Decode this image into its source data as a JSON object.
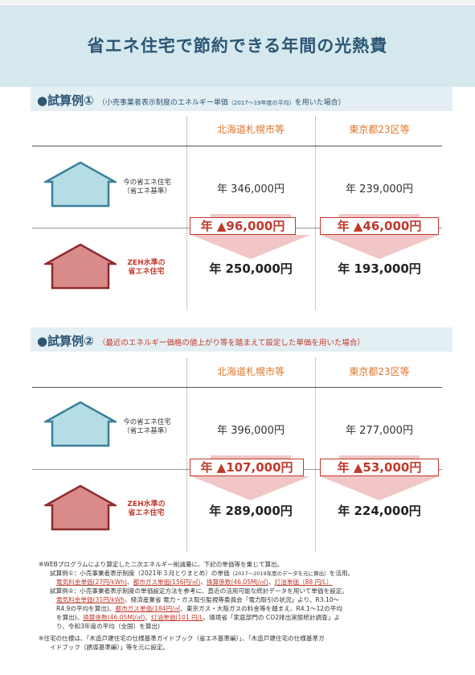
{
  "title": "省エネ住宅で節約できる年間の光熱費",
  "cases": [
    {
      "label": "●試算例①",
      "note_pre": "（小売事業者表示制度のエネルギー単価",
      "note_small": "（2017～19年度の平均）",
      "note_post": "を用いた場合）",
      "note_red": "",
      "col_sapporo": "北海道札幌市等",
      "col_tokyo": "東京都23区等",
      "house1_label_line1": "今の省エネ住宅",
      "house1_label_line2": "（省エネ基準）",
      "house2_label_line1": "ZEH水準の",
      "house2_label_line2": "省エネ住宅",
      "sapporo_current": "年 346,000円",
      "tokyo_current": "年 239,000円",
      "sapporo_saving": "年 ▲96,000円",
      "tokyo_saving": "年 ▲46,000円",
      "sapporo_zeh": "年 250,000円",
      "tokyo_zeh": "年 193,000円"
    },
    {
      "label": "●試算例②",
      "note_pre": "",
      "note_small": "",
      "note_post": "",
      "note_red": "（最近のエネルギー価格の値上がり等を踏まえて設定した単価を用いた場合）",
      "col_sapporo": "北海道札幌市等",
      "col_tokyo": "東京都23区等",
      "house1_label_line1": "今の省エネ住宅",
      "house1_label_line2": "（省エネ基準）",
      "house2_label_line1": "ZEH水準の",
      "house2_label_line2": "省エネ住宅",
      "sapporo_current": "年 396,000円",
      "tokyo_current": "年 277,000円",
      "sapporo_saving": "年 ▲107,000円",
      "tokyo_saving": "年 ▲53,000円",
      "sapporo_zeh": "年 289,000円",
      "tokyo_zeh": "年 224,000円"
    }
  ],
  "footnotes": {
    "f1": "※WEBプログラムにより算定した二次エネルギー削減量に、下記の単価等を乗じて算出。",
    "f2a": "試算例①：小売事業者表示制度（2021年３月とりまとめ）の単価",
    "f2b": "（2017～2019年度のデータを元に算出）",
    "f2c": "を活用。",
    "f3_r1": "電気料金単価(27円/kWh)",
    "f3_s1": "、",
    "f3_r2": "都市ガス単価(156円/㎥)",
    "f3_s2": "、",
    "f3_r3": "換算係数(46.05MJ/㎥)",
    "f3_s3": "、",
    "f3_r4": "灯油単価（88 円/L）",
    "f4": "試算例②：小売事業者表示制度の単価設定方法を参考に、直近の活用可能な統計データを用いて単価を設定。",
    "f5_r1": "電気料金単価(31円/kWh",
    "f5_t1": "、経済産業省 電力・ガス取引監視等委員会「電力取引の状況」より、R3.10～",
    "f6_t1": "R4.9の平均を算出)、",
    "f6_r1": "都市ガス単価(184円/㎥",
    "f6_t2": "、東京ガス・大阪ガスの料金等を踏まえ、R4.1～12の平均",
    "f7_t1": "を算出)、",
    "f7_r1": "換算係数(46.05MJ/㎥)",
    "f7_t2": "、",
    "f7_r2": "灯油単価(101 円/L",
    "f7_t3": "、環境省「家庭部門の CO2排出実態統計調査」よ",
    "f8": "り、令和3年度の平均（全国）を算出)",
    "f9": "※住宅の仕様は、「木造戸建住宅の仕様基準ガイドブック（省エネ基準編）」、「木造戸建住宅の仕様基準ガ",
    "f10": "イドブック（誘導基準編）」等を元に設定。"
  },
  "colors": {
    "title_bg": "#d4e8ee",
    "title_text": "#2c5674",
    "accent_orange": "#e0762a",
    "accent_red": "#c0392b",
    "house_blue": "#b5dde6",
    "house_red": "#d98a8a"
  }
}
